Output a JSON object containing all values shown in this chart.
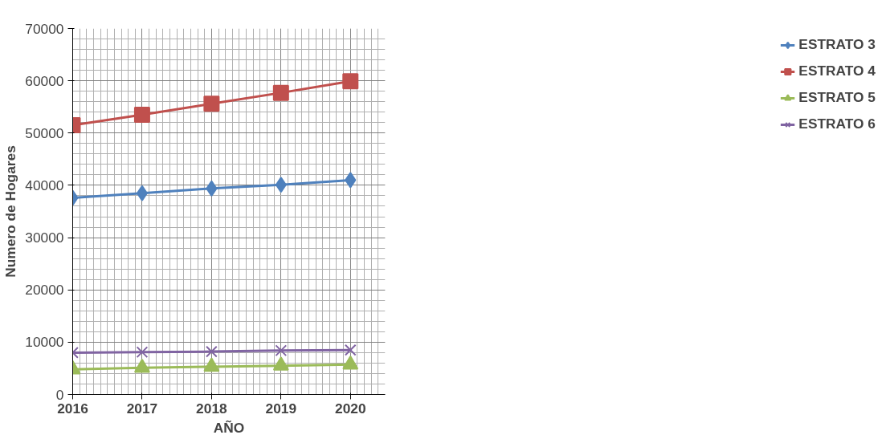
{
  "chart_data": {
    "type": "line",
    "xlabel": "AÑO",
    "ylabel": "Numero de Hogares",
    "x": [
      2016,
      2017,
      2018,
      2019,
      2020
    ],
    "series": [
      {
        "name": "ESTRATO 3",
        "color": "#4f81bd",
        "marker": "diamond",
        "values": [
          37600,
          38500,
          39400,
          40100,
          41000
        ]
      },
      {
        "name": "ESTRATO 4",
        "color": "#c0504d",
        "marker": "square",
        "values": [
          51500,
          53500,
          55600,
          57700,
          59900
        ]
      },
      {
        "name": "ESTRATO 5",
        "color": "#9bbb59",
        "marker": "triangle",
        "values": [
          4800,
          5100,
          5300,
          5500,
          5700
        ]
      },
      {
        "name": "ESTRATO 6",
        "color": "#8064a2",
        "marker": "cross",
        "values": [
          8000,
          8100,
          8200,
          8400,
          8500
        ]
      }
    ],
    "xlim": [
      2016,
      2020.5
    ],
    "xticks": [
      2016,
      2017,
      2018,
      2019,
      2020
    ],
    "ylim": [
      0,
      70000
    ],
    "yticks": [
      0,
      10000,
      20000,
      30000,
      40000,
      50000,
      60000,
      70000
    ],
    "grid": true,
    "legend": "right"
  }
}
